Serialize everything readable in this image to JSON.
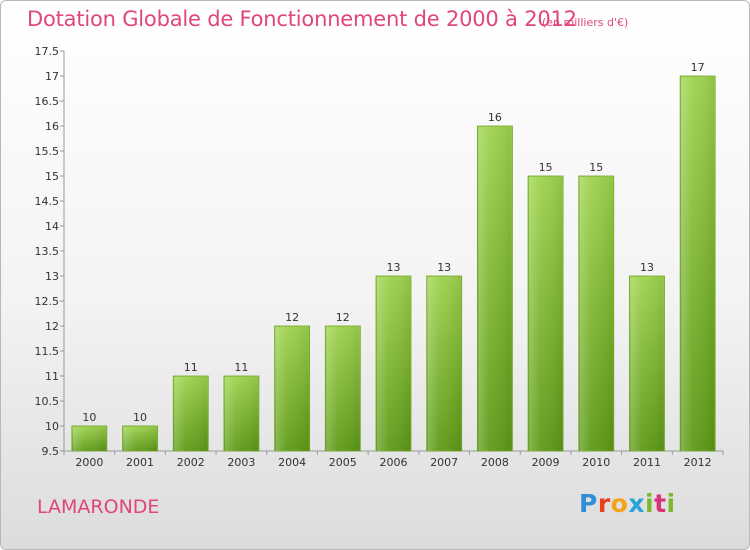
{
  "header": {
    "title": "Dotation Globale de Fonctionnement de 2000 à 2012",
    "subtitle": "(en milliers d'€)"
  },
  "footer": {
    "commune": "LAMARONDE",
    "brand": [
      "P",
      "r",
      "o",
      "x",
      "i",
      "t",
      "i"
    ],
    "brand_colors": [
      "#2e8fd6",
      "#e8401c",
      "#f3a21b",
      "#2aa4d6",
      "#7cb82f",
      "#d6337a",
      "#7cb82f"
    ]
  },
  "chart_data": {
    "type": "bar",
    "title": "Dotation Globale de Fonctionnement de 2000 à 2012",
    "subtitle": "(en milliers d'€)",
    "categories": [
      "2000",
      "2001",
      "2002",
      "2003",
      "2004",
      "2005",
      "2006",
      "2007",
      "2008",
      "2009",
      "2010",
      "2011",
      "2012"
    ],
    "values": [
      10,
      10,
      11,
      11,
      12,
      12,
      13,
      13,
      16,
      15,
      15,
      13,
      17
    ],
    "ylim": [
      9.5,
      17.5
    ],
    "yticks": [
      9.5,
      10,
      10.5,
      11,
      11.5,
      12,
      12.5,
      13,
      13.5,
      14,
      14.5,
      15,
      15.5,
      16,
      16.5,
      17,
      17.5
    ],
    "ytick_labels": [
      "9.5",
      "10",
      "10.5",
      "11",
      "11.5",
      "12",
      "12.5",
      "13",
      "13.5",
      "14",
      "14.5",
      "15",
      "15.5",
      "16",
      "16.5",
      "17",
      "17.5"
    ],
    "grid": false,
    "bar_color": "#8cc63f",
    "xlabel": "",
    "ylabel": ""
  }
}
